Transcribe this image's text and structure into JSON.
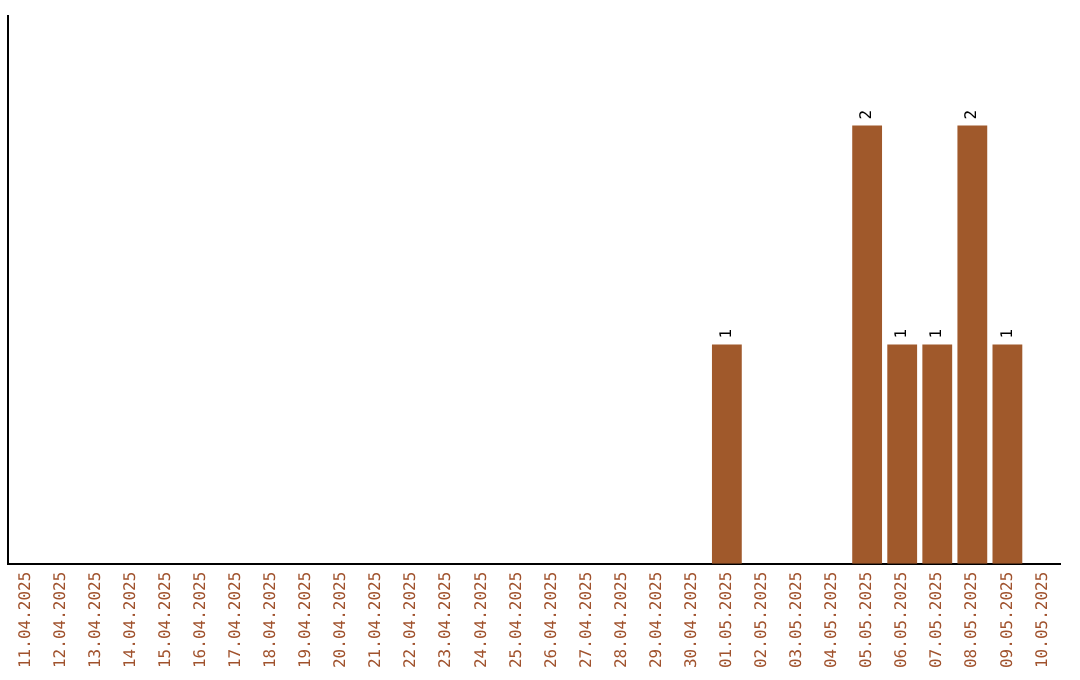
{
  "chart_data": {
    "type": "bar",
    "categories": [
      "11.04.2025",
      "12.04.2025",
      "13.04.2025",
      "14.04.2025",
      "15.04.2025",
      "16.04.2025",
      "17.04.2025",
      "18.04.2025",
      "19.04.2025",
      "20.04.2025",
      "21.04.2025",
      "22.04.2025",
      "23.04.2025",
      "24.04.2025",
      "25.04.2025",
      "26.04.2025",
      "27.04.2025",
      "28.04.2025",
      "29.04.2025",
      "30.04.2025",
      "01.05.2025",
      "02.05.2025",
      "03.05.2025",
      "04.05.2025",
      "05.05.2025",
      "06.05.2025",
      "07.05.2025",
      "08.05.2025",
      "09.05.2025",
      "10.05.2025"
    ],
    "values": [
      null,
      null,
      null,
      null,
      null,
      null,
      null,
      null,
      null,
      null,
      null,
      null,
      null,
      null,
      null,
      null,
      null,
      null,
      null,
      null,
      1,
      null,
      null,
      null,
      2,
      1,
      1,
      2,
      1,
      null
    ],
    "color": "#a0592b",
    "data_labels": true,
    "tick_labels": "x",
    "grid": false,
    "legend": false
  }
}
